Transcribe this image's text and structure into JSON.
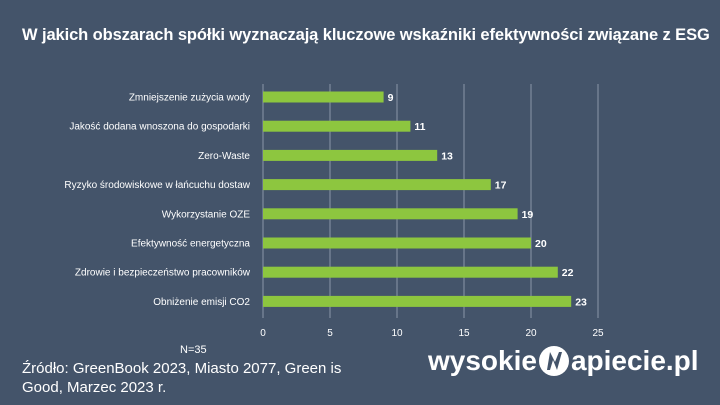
{
  "chart_data": {
    "type": "bar",
    "orientation": "horizontal",
    "title": "W jakich obszarach spółki wyznaczają kluczowe wskaźniki efektywności związane z ESG",
    "categories": [
      "Zmniejszenie zużycia wody",
      "Jakość dodana wnoszona do gospodarki",
      "Zero-Waste",
      "Ryzyko środowiskowe w łańcuchu dostaw",
      "Wykorzystanie OZE",
      "Efektywność energetyczna",
      "Zdrowie i bezpieczeństwo pracowników",
      "Obniżenie emisji CO2"
    ],
    "values": [
      9,
      11,
      13,
      17,
      19,
      20,
      22,
      23
    ],
    "xlim": [
      0,
      25
    ],
    "xticks": [
      0,
      5,
      10,
      15,
      20,
      25
    ],
    "grid": true,
    "bar_color": "#8dc63f",
    "data_labels": true
  },
  "footer": {
    "n_label": "N=35",
    "source": "Źródło: GreenBook 2023, Miasto 2077, Green is Good, Marzec 2023 r.",
    "logo_left": "wysokie",
    "logo_right": "apiecie.pl"
  }
}
